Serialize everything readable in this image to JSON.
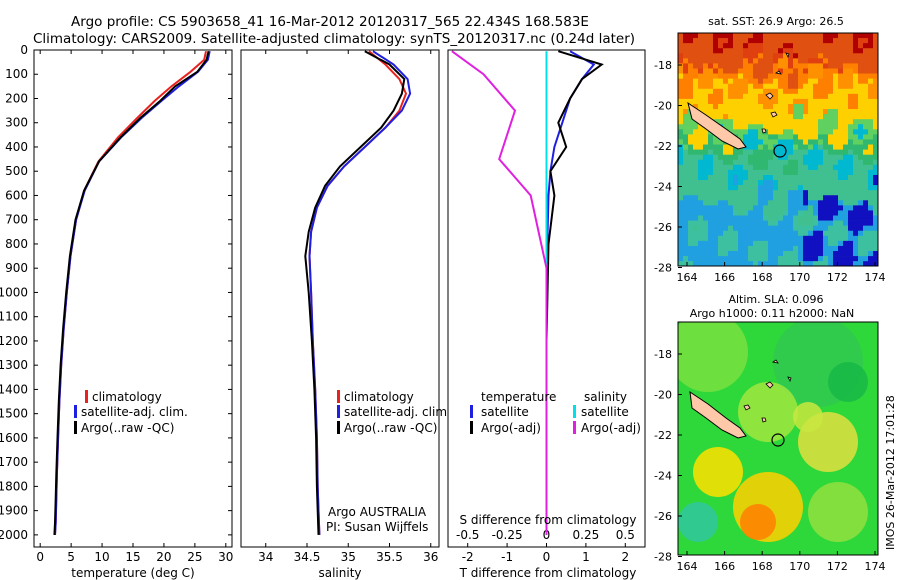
{
  "title": {
    "line1": "Argo profile: CS 5903658_41 16-Mar-2012 20120317_565 22.434S 168.583E",
    "line2": "Climatology: CARS2009. Satellite-adjusted climatology: synTS_20120317.nc (0.24d later)"
  },
  "colors": {
    "climatology": "#e8231f",
    "satellite": "#1f1fe0",
    "argo": "#000000",
    "salinity_sat": "#00e0e8",
    "salinity_argo": "#e020e0"
  },
  "chart_data": [
    {
      "type": "line",
      "name": "temperature-profile",
      "xlabel": "temperature (deg C)",
      "xlim": [
        -1,
        31
      ],
      "xticks": [
        "0",
        "5",
        "10",
        "15",
        "20",
        "25",
        "30"
      ],
      "ylim": [
        0,
        2050
      ],
      "yticks": [
        "0",
        "100",
        "200",
        "300",
        "400",
        "500",
        "600",
        "700",
        "800",
        "900",
        "1000",
        "1100",
        "1200",
        "1300",
        "1400",
        "1500",
        "1600",
        "1700",
        "1800",
        "1900",
        "2000"
      ],
      "legend": [
        "climatology",
        "satellite-adj. clim.",
        "Argo(..raw -QC)"
      ],
      "series": [
        {
          "name": "climatology",
          "x": [
            26.8,
            26.5,
            24.3,
            21.2,
            18.5,
            15.7,
            12.6,
            9.4,
            7.1,
            5.8,
            4.9,
            4.3,
            3.8,
            3.4,
            3.1,
            2.9,
            2.7,
            2.6,
            2.5,
            2.4
          ],
          "y": [
            5,
            40,
            90,
            150,
            210,
            280,
            360,
            460,
            580,
            700,
            850,
            1000,
            1150,
            1300,
            1450,
            1600,
            1750,
            1850,
            1950,
            2000
          ]
        },
        {
          "name": "satellite-adj. clim.",
          "x": [
            27.4,
            27.1,
            25.5,
            22.4,
            19.6,
            16.4,
            13.1,
            9.5,
            7.2,
            5.8,
            4.9,
            4.3,
            3.8,
            3.4,
            3.1,
            2.9,
            2.7,
            2.6,
            2.5,
            2.4
          ],
          "y": [
            5,
            40,
            90,
            150,
            210,
            280,
            360,
            460,
            580,
            700,
            850,
            1000,
            1150,
            1300,
            1450,
            1600,
            1750,
            1850,
            1950,
            2000
          ]
        },
        {
          "name": "Argo(..raw -QC)",
          "x": [
            27.2,
            26.9,
            25.4,
            21.8,
            19.4,
            16.2,
            13.0,
            9.5,
            7.1,
            5.7,
            4.8,
            4.2,
            3.7,
            3.3,
            3.0,
            2.8,
            2.6,
            2.5,
            2.4,
            2.3
          ],
          "y": [
            5,
            40,
            90,
            150,
            210,
            280,
            360,
            460,
            580,
            700,
            850,
            1000,
            1150,
            1300,
            1450,
            1600,
            1750,
            1850,
            1950,
            2000
          ]
        }
      ]
    },
    {
      "type": "line",
      "name": "salinity-profile",
      "xlabel": "salinity",
      "xlim": [
        33.7,
        36.1
      ],
      "xticks": [
        "34",
        "34.5",
        "35",
        "35.5",
        "36"
      ],
      "ylim": [
        0,
        2050
      ],
      "legend": [
        "climatology",
        "satellite-adj. clim.",
        "Argo(..raw -QC)"
      ],
      "annotation": [
        "Argo AUSTRALIA",
        "PI: Susan Wijffels"
      ],
      "series": [
        {
          "name": "climatology",
          "x": [
            35.25,
            35.45,
            35.62,
            35.7,
            35.62,
            35.45,
            35.2,
            34.95,
            34.75,
            34.62,
            34.55,
            34.53,
            34.55,
            34.57,
            34.6,
            34.62,
            34.63,
            34.64,
            34.65
          ],
          "y": [
            5,
            60,
            120,
            180,
            250,
            320,
            400,
            480,
            560,
            650,
            750,
            850,
            1000,
            1200,
            1400,
            1600,
            1800,
            1900,
            2000
          ]
        },
        {
          "name": "satellite-adj. clim.",
          "x": [
            35.3,
            35.55,
            35.72,
            35.75,
            35.65,
            35.45,
            35.2,
            34.95,
            34.75,
            34.62,
            34.55,
            34.53,
            34.55,
            34.57,
            34.6,
            34.62,
            34.63,
            34.64,
            34.65
          ],
          "y": [
            5,
            60,
            120,
            180,
            250,
            320,
            400,
            480,
            560,
            650,
            750,
            850,
            1000,
            1200,
            1400,
            1600,
            1800,
            1900,
            2000
          ]
        },
        {
          "name": "Argo(..raw -QC)",
          "x": [
            35.2,
            35.5,
            35.68,
            35.65,
            35.55,
            35.4,
            35.15,
            34.9,
            34.72,
            34.6,
            34.52,
            34.48,
            34.52,
            34.56,
            34.59,
            34.61,
            34.62,
            34.63,
            34.64
          ],
          "y": [
            5,
            60,
            120,
            180,
            250,
            320,
            400,
            480,
            560,
            650,
            750,
            850,
            1000,
            1200,
            1400,
            1600,
            1800,
            1900,
            2000
          ]
        }
      ]
    },
    {
      "type": "line",
      "name": "difference-profile",
      "xlabel_top": "S difference from climatology",
      "xlabel": "T difference from climatology",
      "xlim": [
        -2.5,
        2.5
      ],
      "s_ticks": [
        "-0.5",
        "-0.25",
        "0",
        "0.25",
        "0.5"
      ],
      "t_ticks": [
        "-2",
        "-1",
        "0",
        "1",
        "2"
      ],
      "legend": {
        "temperature": "temperature",
        "salinity": "salinity",
        "t_sat": "satellite",
        "t_argo": "Argo(-adj)",
        "s_sat": "satellite",
        "s_argo": "Argo(-adj)"
      },
      "series": [
        {
          "name": "temperature satellite",
          "x": [
            0.6,
            1.2,
            0.9,
            0.6,
            0.4,
            0.2,
            0.1,
            0.05,
            0.02,
            0.0,
            0.0
          ],
          "y": [
            5,
            60,
            120,
            200,
            300,
            400,
            500,
            600,
            800,
            1200,
            2000
          ]
        },
        {
          "name": "temperature Argo(-adj)",
          "x": [
            0.3,
            1.4,
            0.9,
            0.6,
            0.3,
            0.5,
            0.1,
            0.2,
            0.05,
            0.0,
            0.0
          ],
          "y": [
            5,
            60,
            120,
            200,
            300,
            400,
            500,
            600,
            800,
            1200,
            2000
          ]
        },
        {
          "name": "salinity satellite",
          "x": [
            0.0,
            0.0,
            0.0,
            0.0,
            0.0,
            0.0
          ],
          "y": [
            5,
            100,
            400,
            800,
            1400,
            2000
          ]
        },
        {
          "name": "salinity Argo(-adj)",
          "x": [
            -0.6,
            -0.4,
            -0.2,
            -0.3,
            -0.1,
            0.0,
            0.0
          ],
          "y": [
            5,
            100,
            250,
            450,
            600,
            900,
            2000
          ]
        }
      ]
    }
  ],
  "maps": {
    "sst": {
      "title": "sat. SST: 26.9 Argo: 26.5",
      "xticks": [
        "164",
        "166",
        "168",
        "170",
        "172",
        "174"
      ],
      "yticks": [
        "-18",
        "-20",
        "-22",
        "-24",
        "-26",
        "-28"
      ]
    },
    "sla": {
      "title1": "Altim. SLA: 0.096",
      "title2": "Argo h1000: 0.11 h2000: NaN",
      "xticks": [
        "164",
        "166",
        "168",
        "170",
        "172",
        "174"
      ],
      "yticks": [
        "-18",
        "-20",
        "-22",
        "-24",
        "-26",
        "-28"
      ]
    }
  },
  "footer": "IMOS 26-Mar-2012 17:01:28"
}
